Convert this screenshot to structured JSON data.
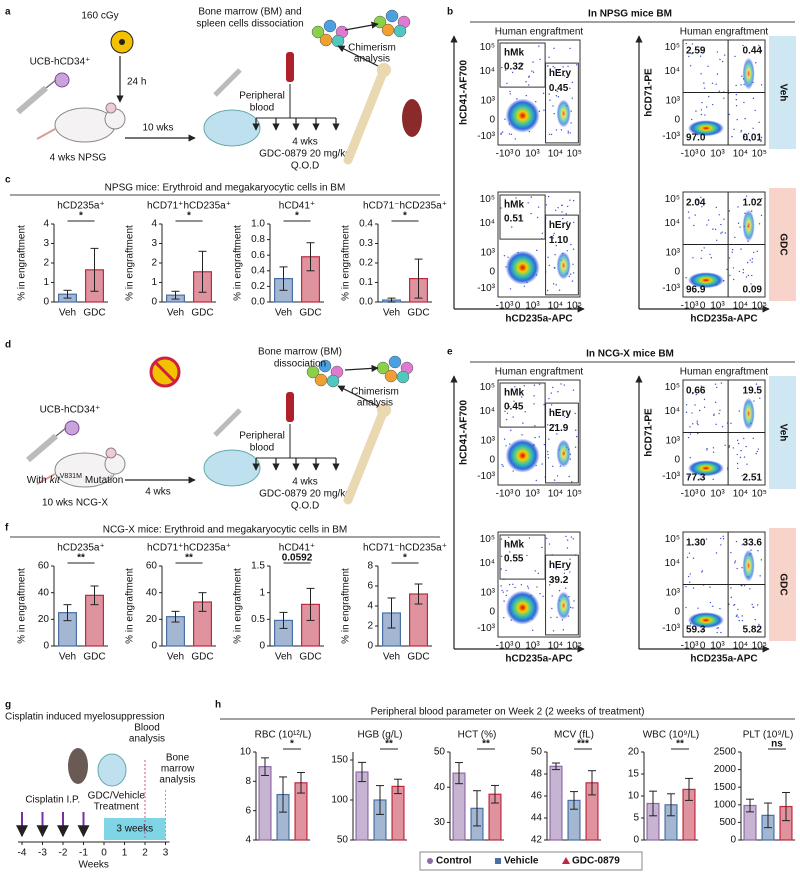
{
  "panel_labels": [
    "a",
    "b",
    "c",
    "d",
    "e",
    "f",
    "g",
    "h"
  ],
  "a": {
    "dose": "160 cGy",
    "cells": "UCB-hCD34⁺",
    "interval": "24 h",
    "mouse": "4 wks NPSG",
    "engraft_time": "10 wks",
    "dissociation": [
      "Bone marrow (BM) and",
      "spleen cells dissociation"
    ],
    "analysis": [
      "Chimerism",
      "analysis"
    ],
    "blood": [
      "Peripheral",
      "blood"
    ],
    "treatment": [
      "4 wks",
      "GDC-0879 20 mg/kg",
      "Q.O.D"
    ]
  },
  "d": {
    "cells": "UCB-hCD34⁺",
    "mutation_prefix": "With",
    "gene": "kit",
    "allele": "V831M",
    "mutation": "Mutation",
    "mouse": "10 wks NCG-X",
    "engraft_time": "4 wks",
    "dissociation": [
      "Bone marrow (BM)",
      "dissociation"
    ],
    "analysis": [
      "Chimerism",
      "analysis"
    ],
    "blood": [
      "Peripheral",
      "blood"
    ],
    "treatment": [
      "4 wks",
      "GDC-0879 20 mg/kg",
      "Q.O.D"
    ]
  },
  "b": {
    "title": "In NPSG mice BM",
    "headers": [
      "Human engraftment",
      "Human engraftment"
    ],
    "ylabels": [
      "hCD41-AF700",
      "hCD71-PE"
    ],
    "xlabels": [
      "hCD235a-APC",
      "hCD235a-APC"
    ],
    "ticks": [
      "-10³",
      "0",
      "10³",
      "10⁴",
      "10⁵"
    ],
    "rows": [
      {
        "group": "Veh",
        "gates": [
          "hMk",
          "0.32",
          "hEry",
          "0.45"
        ],
        "quadrants": [
          "2.59",
          "0.44",
          "97.0",
          "0.01"
        ]
      },
      {
        "group": "GDC",
        "gates": [
          "hMk",
          "0.51",
          "hEry",
          "1.10"
        ],
        "quadrants": [
          "2.04",
          "1.02",
          "96.9",
          "0.09"
        ]
      }
    ]
  },
  "e": {
    "title": "In NCG-X mice BM",
    "headers": [
      "Human engraftment",
      "Human engraftment"
    ],
    "ylabels": [
      "hCD41-AF700",
      "hCD71-PE"
    ],
    "xlabels": [
      "hCD235a-APC",
      "hCD235a-APC"
    ],
    "ticks": [
      "-10³",
      "0",
      "10³",
      "10⁴",
      "10⁵"
    ],
    "rows": [
      {
        "group": "Veh",
        "gates": [
          "hMk",
          "0.45",
          "hEry",
          "21.9"
        ],
        "quadrants": [
          "0.66",
          "19.5",
          "77.3",
          "2.51"
        ]
      },
      {
        "group": "GDC",
        "gates": [
          "hMk",
          "0.55",
          "hEry",
          "39.2"
        ],
        "quadrants": [
          "1.30",
          "33.6",
          "59.3",
          "5.82"
        ]
      }
    ]
  },
  "g": {
    "title": "Cisplatin induced myelosuppression",
    "injection": "Cisplatin I.P.",
    "treatment": [
      "GDC/Vehicle",
      "Treatment"
    ],
    "blood": [
      "Blood",
      "analysis"
    ],
    "marrow": [
      "Bone",
      "marrow",
      "analysis"
    ],
    "duration": "3 weeks",
    "axis_label": "Weeks",
    "weeks": [
      -4,
      -3,
      -2,
      -1,
      0,
      1,
      2,
      3
    ]
  },
  "panel_titles": {
    "c": "NPSG mice: Erythroid and megakaryocytic cells in BM",
    "f": "NCG-X mice: Erythroid and megakaryocytic cells in BM",
    "h": "Peripheral blood parameter on Week 2 (2 weeks of treatment)"
  },
  "legend_h": {
    "items": [
      "Control",
      "Vehicle",
      "GDC-0879"
    ],
    "colors": [
      "#8e6aa6",
      "#4a6fa5",
      "#c0283f"
    ]
  },
  "chart_data": [
    {
      "type": "bar",
      "title": "hCD235a⁺",
      "ylabel": "% in engraftment",
      "categories": [
        "Veh",
        "GDC"
      ],
      "values": [
        0.4,
        1.65
      ],
      "errors": [
        0.2,
        1.1
      ],
      "colors": [
        "#4a6fa5",
        "#c0283f"
      ],
      "ylim": [
        0,
        4
      ],
      "yticks": [
        0,
        1,
        2,
        3,
        4
      ],
      "significance": "*"
    },
    {
      "type": "bar",
      "title": "hCD71⁺hCD235a⁺",
      "ylabel": "% in engraftment",
      "categories": [
        "Veh",
        "GDC"
      ],
      "values": [
        0.35,
        1.55
      ],
      "errors": [
        0.2,
        1.05
      ],
      "colors": [
        "#4a6fa5",
        "#c0283f"
      ],
      "ylim": [
        0,
        4
      ],
      "yticks": [
        0,
        1,
        2,
        3,
        4
      ],
      "significance": "*"
    },
    {
      "type": "bar",
      "title": "hCD41⁺",
      "ylabel": "% in engraftment",
      "categories": [
        "Veh",
        "GDC"
      ],
      "values": [
        0.3,
        0.58
      ],
      "errors": [
        0.15,
        0.18
      ],
      "colors": [
        "#4a6fa5",
        "#c0283f"
      ],
      "ylim": [
        0,
        1
      ],
      "yticks": [
        {
          "value": 0,
          "label": "0.0"
        },
        {
          "value": 0.2,
          "label": "0.2"
        },
        {
          "value": 0.4,
          "label": "0.4"
        },
        {
          "value": 0.6,
          "label": "0.6"
        },
        {
          "value": 0.8,
          "label": "0.8"
        },
        {
          "value": 1,
          "label": "1.0"
        }
      ],
      "significance": "*"
    },
    {
      "type": "bar",
      "title": "hCD71⁻hCD235a⁺",
      "ylabel": "% in engraftment",
      "categories": [
        "Veh",
        "GDC"
      ],
      "values": [
        0.01,
        0.12
      ],
      "errors": [
        0.01,
        0.1
      ],
      "colors": [
        "#4a6fa5",
        "#c0283f"
      ],
      "ylim": [
        0,
        0.4
      ],
      "yticks": [
        {
          "value": 0,
          "label": "0.0"
        },
        {
          "value": 0.1,
          "label": "0.1"
        },
        {
          "value": 0.2,
          "label": "0.2"
        },
        {
          "value": 0.3,
          "label": "0.3"
        },
        {
          "value": 0.4,
          "label": "0.4"
        }
      ],
      "significance": "*"
    },
    {
      "type": "bar",
      "title": "hCD235a⁺",
      "ylabel": "% in engraftment",
      "categories": [
        "Veh",
        "GDC"
      ],
      "values": [
        25,
        38
      ],
      "errors": [
        6,
        7
      ],
      "colors": [
        "#4a6fa5",
        "#c0283f"
      ],
      "ylim": [
        0,
        60
      ],
      "yticks": [
        0,
        20,
        40,
        60
      ],
      "significance": "**"
    },
    {
      "type": "bar",
      "title": "hCD71⁺hCD235a⁺",
      "ylabel": "% in engraftment",
      "categories": [
        "Veh",
        "GDC"
      ],
      "values": [
        22,
        33
      ],
      "errors": [
        4,
        7
      ],
      "colors": [
        "#4a6fa5",
        "#c0283f"
      ],
      "ylim": [
        0,
        60
      ],
      "yticks": [
        0,
        20,
        40,
        60
      ],
      "significance": "**"
    },
    {
      "type": "bar",
      "title": "hCD41⁺",
      "ylabel": "% in engraftment",
      "categories": [
        "Veh",
        "GDC"
      ],
      "values": [
        0.48,
        0.78
      ],
      "errors": [
        0.15,
        0.3
      ],
      "colors": [
        "#4a6fa5",
        "#c0283f"
      ],
      "ylim": [
        0,
        1.5
      ],
      "yticks": [
        0,
        0.5,
        1,
        1.5
      ],
      "significance": "0.0592"
    },
    {
      "type": "bar",
      "title": "hCD71⁻hCD235a⁺",
      "ylabel": "% in engraftment",
      "categories": [
        "Veh",
        "GDC"
      ],
      "values": [
        3.3,
        5.2
      ],
      "errors": [
        1.5,
        1
      ],
      "colors": [
        "#4a6fa5",
        "#c0283f"
      ],
      "ylim": [
        0,
        8
      ],
      "yticks": [
        0,
        2,
        4,
        6,
        8
      ],
      "significance": "*"
    },
    {
      "type": "bar",
      "title": "RBC (10¹²/L)",
      "values": [
        9.0,
        7.1,
        7.9
      ],
      "errors": [
        0.6,
        1.2,
        0.7
      ],
      "colors": [
        "#8e6aa6",
        "#4a6fa5",
        "#c0283f"
      ],
      "ylim": [
        4,
        10
      ],
      "yticks": [
        4,
        6,
        8,
        10
      ],
      "significance": "*"
    },
    {
      "type": "bar",
      "title": "HGB (g/L)",
      "values": [
        135,
        100,
        117
      ],
      "errors": [
        12,
        18,
        9
      ],
      "colors": [
        "#8e6aa6",
        "#4a6fa5",
        "#c0283f"
      ],
      "ylim": [
        50,
        160
      ],
      "yticks": [
        50,
        100,
        150
      ],
      "significance": "**"
    },
    {
      "type": "bar",
      "title": "HCT (%)",
      "values": [
        44,
        34,
        38
      ],
      "errors": [
        3,
        5,
        2.5
      ],
      "colors": [
        "#8e6aa6",
        "#4a6fa5",
        "#c0283f"
      ],
      "ylim": [
        25,
        50
      ],
      "yticks": [
        30,
        40,
        50
      ],
      "significance": "**"
    },
    {
      "type": "bar",
      "title": "MCV (fL)",
      "values": [
        48.7,
        45.6,
        47.2
      ],
      "errors": [
        0.3,
        0.8,
        1.1
      ],
      "colors": [
        "#8e6aa6",
        "#4a6fa5",
        "#c0283f"
      ],
      "ylim": [
        42,
        50
      ],
      "yticks": [
        42,
        44,
        46,
        48,
        50
      ],
      "significance": "***"
    },
    {
      "type": "bar",
      "title": "WBC (10⁹/L)",
      "values": [
        8.3,
        8.0,
        11.5
      ],
      "errors": [
        2.8,
        2.5,
        2.5
      ],
      "colors": [
        "#8e6aa6",
        "#4a6fa5",
        "#c0283f"
      ],
      "ylim": [
        0,
        20
      ],
      "yticks": [
        0,
        5,
        10,
        15,
        20
      ],
      "significance": "**"
    },
    {
      "type": "bar",
      "title": "PLT (10⁹/L)",
      "values": [
        980,
        700,
        950
      ],
      "errors": [
        180,
        350,
        400
      ],
      "colors": [
        "#8e6aa6",
        "#4a6fa5",
        "#c0283f"
      ],
      "ylim": [
        0,
        2500
      ],
      "yticks": [
        0,
        500,
        1000,
        1500,
        2000,
        2500
      ],
      "significance": "ns"
    }
  ]
}
